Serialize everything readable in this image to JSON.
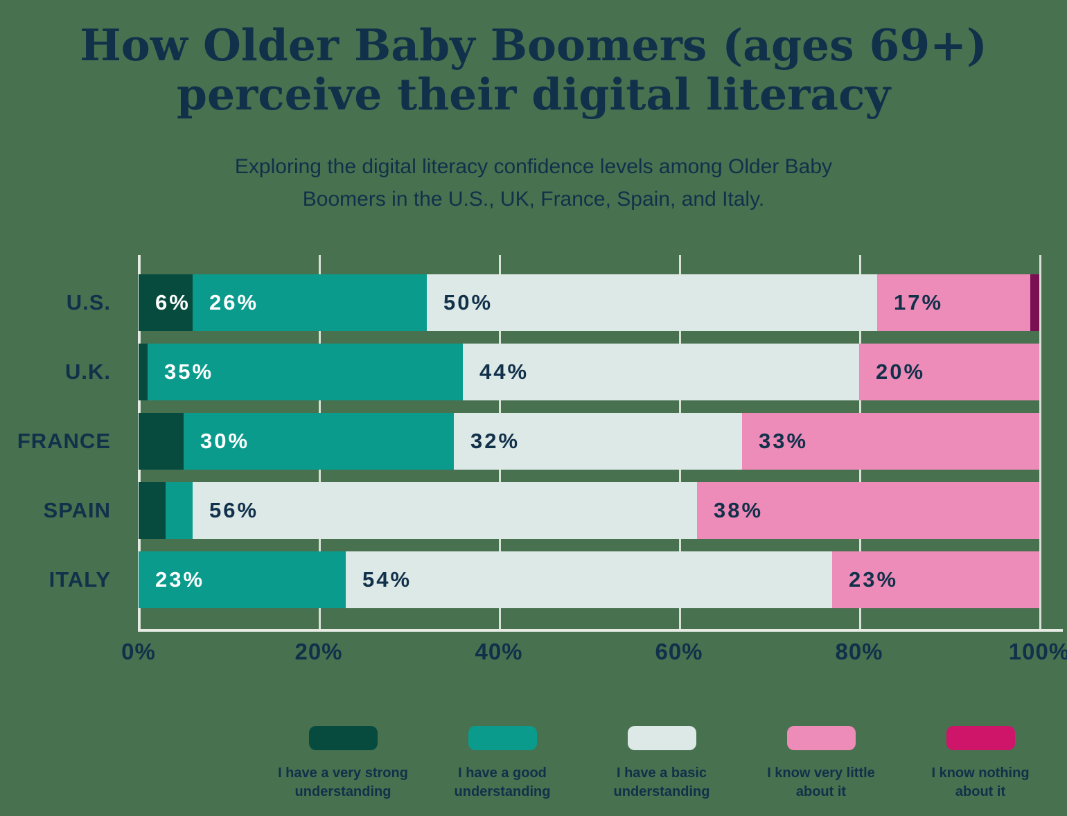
{
  "title": {
    "line1": "How Older Baby Boomers (ages 69+)",
    "line2": "perceive their digital literacy"
  },
  "subtitle": {
    "line1": "Exploring the digital literacy confidence levels among Older Baby",
    "line2": "Boomers in the U.S., UK, France, Spain, and Italy."
  },
  "colors": {
    "background": "#487150",
    "text_navy": "#11304a",
    "gridline": "#d9e2d8",
    "axis_line": "#e6ece4"
  },
  "chart_data": {
    "type": "bar",
    "orientation": "horizontal",
    "stacked": true,
    "categories": [
      "U.S.",
      "U.K.",
      "FRANCE",
      "SPAIN",
      "ITALY"
    ],
    "series": [
      {
        "name": "I have a very strong understanding",
        "bar_color": "#064b3e",
        "label_color": "#ffffff",
        "values": [
          6,
          1,
          5,
          3,
          0
        ]
      },
      {
        "name": "I have a good understanding",
        "bar_color": "#0a9b8d",
        "label_color": "#ffffff",
        "values": [
          26,
          35,
          30,
          3,
          23
        ]
      },
      {
        "name": "I have a basic understanding",
        "bar_color": "#dde9e6",
        "label_color": "#11304a",
        "values": [
          50,
          44,
          32,
          56,
          54
        ]
      },
      {
        "name": "I know very little about it",
        "bar_color": "#ee8cb9",
        "label_color": "#11304a",
        "values": [
          17,
          20,
          33,
          38,
          23
        ]
      },
      {
        "name": "I know nothing about it",
        "bar_color": "#7a1052",
        "label_color": "#ffffff",
        "values": [
          1,
          0,
          0,
          0,
          0
        ]
      }
    ],
    "value_label_format": "{v}%",
    "value_label_min": 6,
    "x_ticks": [
      {
        "value": 0,
        "label": "0%"
      },
      {
        "value": 20,
        "label": "20%"
      },
      {
        "value": 40,
        "label": "40%"
      },
      {
        "value": 60,
        "label": "60%"
      },
      {
        "value": 80,
        "label": "80%"
      },
      {
        "value": 100,
        "label": "100%"
      }
    ],
    "xlim": [
      0,
      100
    ],
    "grid": true,
    "legend_position": "bottom"
  },
  "legend": {
    "items": [
      {
        "color": "#064b3e",
        "lines": [
          "I have a very strong",
          "understanding"
        ]
      },
      {
        "color": "#0a9b8d",
        "lines": [
          "I have a good",
          "understanding"
        ]
      },
      {
        "color": "#dde9e6",
        "lines": [
          "I have a basic",
          "understanding"
        ]
      },
      {
        "color": "#ee8cb9",
        "lines": [
          "I know very little",
          "about it"
        ]
      },
      {
        "color": "#ce156a",
        "lines": [
          "I know nothing",
          "about it"
        ]
      }
    ]
  }
}
